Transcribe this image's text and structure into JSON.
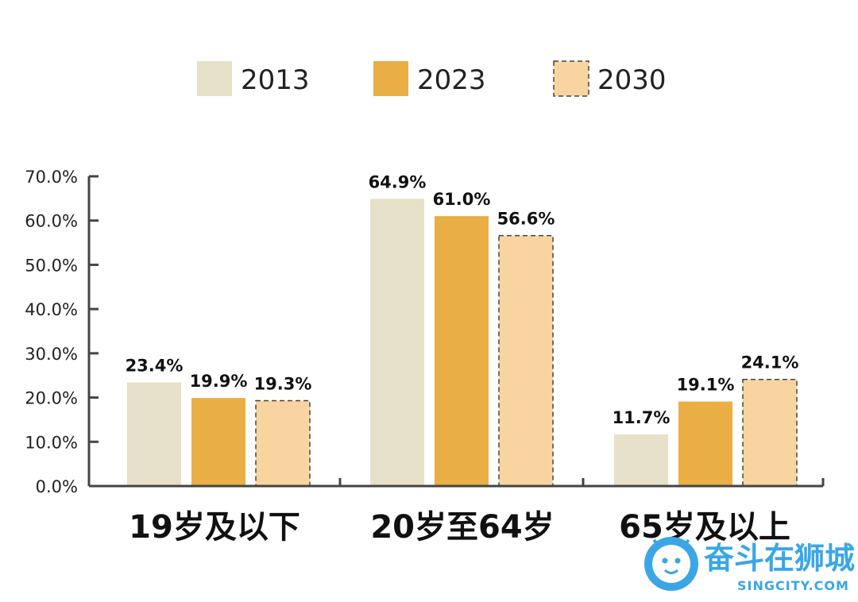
{
  "chart_data": {
    "type": "bar",
    "categories": [
      "19岁及以下",
      "20岁至64岁",
      "65岁及以上"
    ],
    "series": [
      {
        "name": "2013",
        "values": [
          23.4,
          64.9,
          11.7
        ],
        "color": "#e6e1c8",
        "dashed": false
      },
      {
        "name": "2023",
        "values": [
          19.9,
          61.0,
          19.1
        ],
        "color": "#e9af45",
        "dashed": false
      },
      {
        "name": "2030",
        "values": [
          19.3,
          56.6,
          24.1
        ],
        "color": "#f8d5a0",
        "dashed": true
      }
    ],
    "data_labels": [
      [
        "23.4%",
        "64.9%",
        "11.7%"
      ],
      [
        "19.9%",
        "61.0%",
        "19.1%"
      ],
      [
        "19.3%",
        "56.6%",
        "24.1%"
      ]
    ],
    "y_ticks": [
      0,
      10,
      20,
      30,
      40,
      50,
      60,
      70
    ],
    "y_tick_labels": [
      "0.0%",
      "10.0%",
      "20.0%",
      "30.0%",
      "40.0%",
      "50.0%",
      "60.0%",
      "70.0%"
    ],
    "ylim": [
      0,
      70
    ],
    "legend": "top-center",
    "grid": false
  },
  "watermark": {
    "logo_icon": "lion-icon",
    "title": "奋斗在狮城",
    "subtitle": "SINGCITY.COM",
    "color": "#3aa6e6"
  }
}
